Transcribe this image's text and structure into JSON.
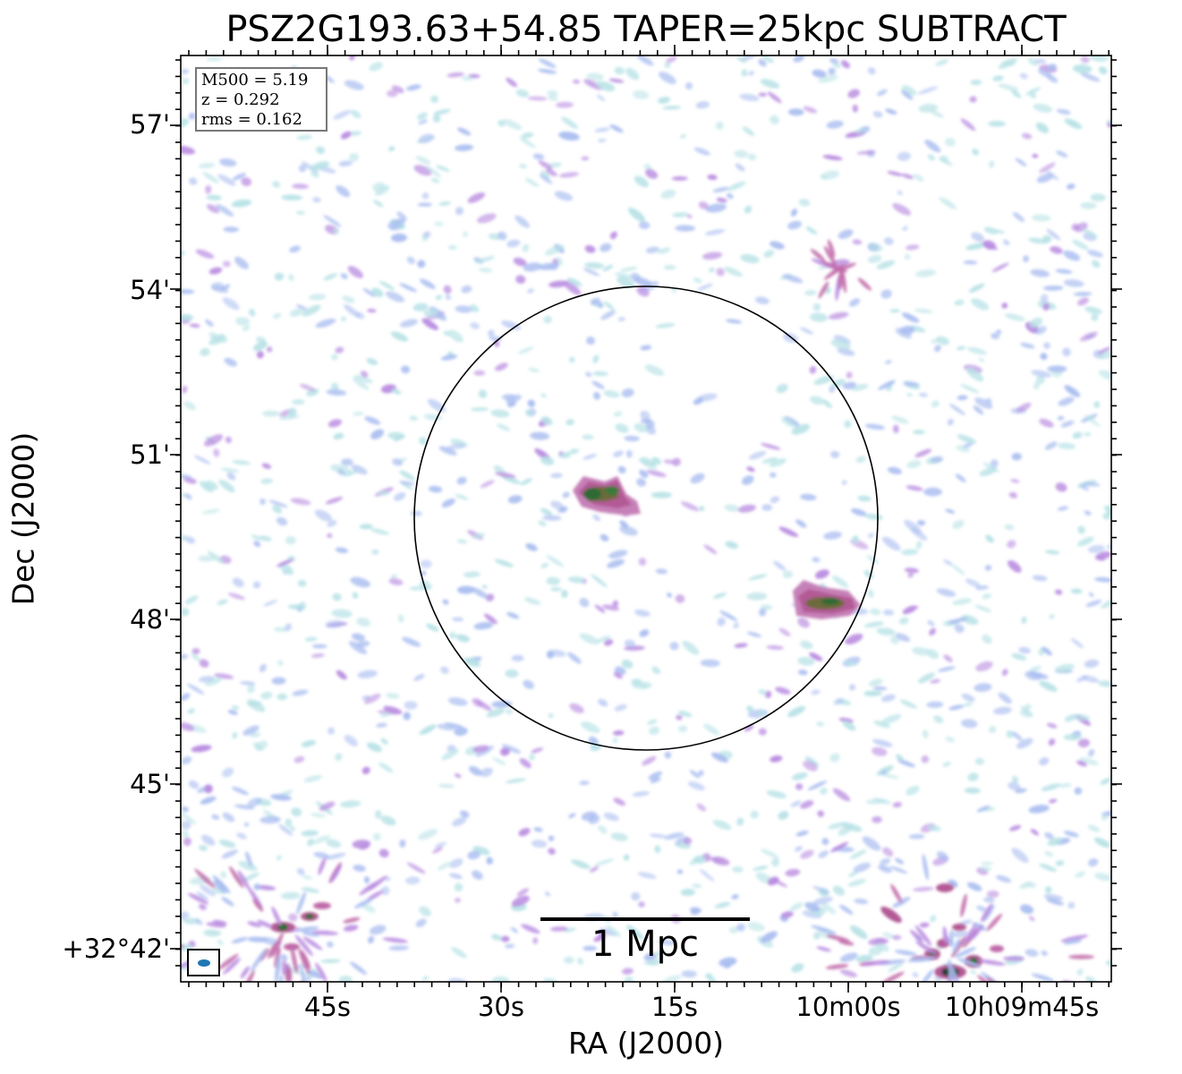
{
  "title": "PSZ2G193.63+54.85 TAPER=25kpc SUBTRACT",
  "axes": {
    "xlabel": "RA (J2000)",
    "ylabel": "Dec (J2000)",
    "xticks": [
      "45s",
      "30s",
      "15s",
      "10m00s",
      "10h09m45s"
    ],
    "yticks": [
      "57'",
      "54'",
      "51'",
      "48'",
      "45'",
      "+32°42'"
    ]
  },
  "infobox": {
    "m500": "M500 = 5.19",
    "z": "z = 0.292",
    "rms": "rms = 0.162"
  },
  "scalebar": {
    "label": "1 Mpc"
  },
  "colors": {
    "noise_light": "#b8e2e6",
    "noise_blue": "#a9bdf0",
    "emission_violet": "#b88ae0",
    "emission_magenta": "#c06aa8",
    "emission_green": "#2f6b34",
    "beam": "#1f77b4"
  },
  "image_description": "Radio continuum map with a circle marking the cluster region and two compact sources inside"
}
